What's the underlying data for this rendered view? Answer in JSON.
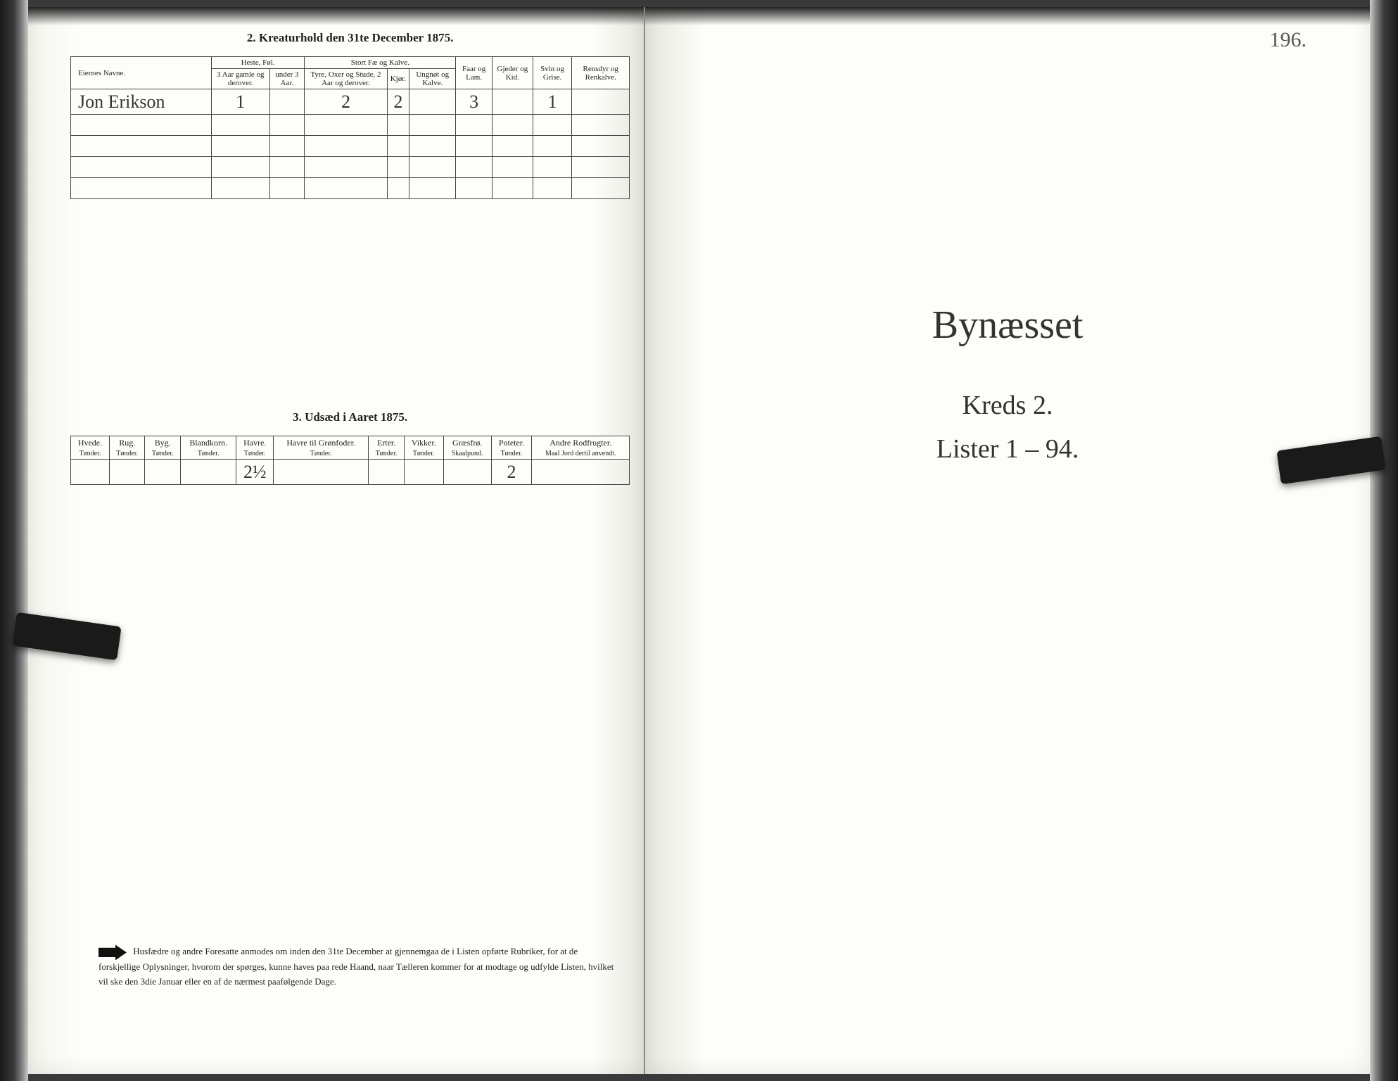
{
  "left": {
    "section2": {
      "title": "2.  Kreaturhold den 31te December 1875.",
      "owners_header": "Eiernes Navne.",
      "group_heste": "Heste, Føl.",
      "group_storfe": "Stort Fæ og Kalve.",
      "col_heste_a": "3 Aar gamle og derover.",
      "col_heste_b": "under 3 Aar.",
      "col_storfe_a": "Tyre, Oxer og Stude, 2 Aar og derover.",
      "col_storfe_b": "Kjør.",
      "col_storfe_c": "Ungnøt og Kalve.",
      "col_faar": "Faar og Lam.",
      "col_gjed": "Gjeder og Kid.",
      "col_svin": "Svin og Grise.",
      "col_ren": "Rensdyr og Renkalve.",
      "row": {
        "owner": "Jon Erikson",
        "heste_a": "1",
        "heste_b": "",
        "storfe_a": "2",
        "storfe_b": "2",
        "storfe_c": "",
        "faar": "3",
        "gjed": "",
        "svin": "1",
        "ren": ""
      }
    },
    "section3": {
      "title": "3.  Udsæd i Aaret 1875.",
      "cols": {
        "hvede": "Hvede.",
        "rug": "Rug.",
        "byg": "Byg.",
        "blandkorn": "Blandkorn.",
        "havre": "Havre.",
        "havre_gron": "Havre til Grønfoder.",
        "erter": "Erter.",
        "vikker": "Vikker.",
        "graesfro": "Græsfrø.",
        "poteter": "Poteter.",
        "andre": "Andre Rodfrugter."
      },
      "unit": "Tønder.",
      "unit_skaal": "Skaalpund.",
      "unit_maal": "Maal Jord dertil anvendt.",
      "row": {
        "hvede": "",
        "rug": "",
        "byg": "",
        "blandkorn": "",
        "havre": "2½",
        "havre_gron": "",
        "erter": "",
        "vikker": "",
        "graesfro": "",
        "poteter": "2",
        "andre": ""
      }
    },
    "footnote": "Husfædre og andre Foresatte anmodes om inden den 31te December at gjennemgaa de i Listen opførte Rubriker, for at de forskjellige Oplysninger, hvorom der spørges, kunne haves paa rede Haand, naar Tælleren kommer for at modtage og udfylde Listen, hvilket vil ske den 3die Januar eller en af de nærmest paafølgende Dage."
  },
  "right": {
    "folio": "196.",
    "title": "Bynæsset",
    "line1": "Kreds 2.",
    "line2": "Lister 1 – 94."
  },
  "colors": {
    "paper": "#fdfdf9",
    "ink": "#222222",
    "pencil": "#555555",
    "border": "#444444",
    "bg": "#3a3a3a"
  }
}
